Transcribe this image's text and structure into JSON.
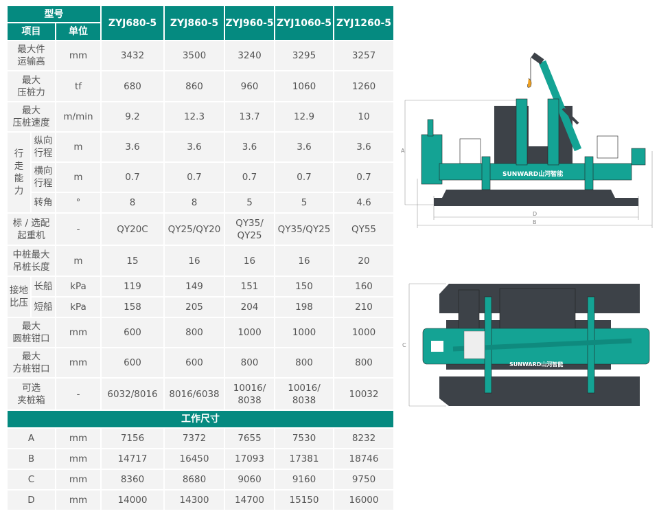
{
  "header": {
    "model_label": "型号",
    "item_label": "项目",
    "unit_label": "单位",
    "models": [
      "ZYJ680-5",
      "ZYJ860-5",
      "ZYJ960-5",
      "ZYJ1060-5",
      "ZYJ1260-5"
    ]
  },
  "spec_rows": [
    {
      "item": "最大件\n运输高",
      "unit": "mm",
      "values": [
        "3432",
        "3500",
        "3240",
        "3295",
        "3257"
      ]
    },
    {
      "item": "最大\n压桩力",
      "unit": "tf",
      "values": [
        "680",
        "860",
        "960",
        "1060",
        "1260"
      ]
    },
    {
      "item": "最大\n压桩速度",
      "unit": "m/min",
      "values": [
        "9.2",
        "12.3",
        "13.7",
        "12.9",
        "10"
      ]
    },
    {
      "group": "行\n走\n能\n力",
      "group_span": 3,
      "sub": "纵向\n行程",
      "unit": "m",
      "values": [
        "3.6",
        "3.6",
        "3.6",
        "3.6",
        "3.6"
      ]
    },
    {
      "sub": "横向\n行程",
      "unit": "m",
      "values": [
        "0.7",
        "0.7",
        "0.7",
        "0.7",
        "0.7"
      ]
    },
    {
      "sub": "转角",
      "unit": "°",
      "values": [
        "8",
        "8",
        "5",
        "5",
        "4.6"
      ]
    },
    {
      "item": "标 / 选配\n起重机",
      "unit": "-",
      "values": [
        "QY20C",
        "QY25/QY20",
        "QY35/\nQY25",
        "QY35/QY25",
        "QY55"
      ]
    },
    {
      "item": "中桩最大\n吊桩长度",
      "unit": "m",
      "values": [
        "15",
        "16",
        "16",
        "16",
        "20"
      ]
    },
    {
      "group": "接地\n比压",
      "group_span": 2,
      "sub": "长船",
      "unit": "kPa",
      "values": [
        "119",
        "149",
        "151",
        "150",
        "160"
      ]
    },
    {
      "sub": "短船",
      "unit": "kPa",
      "values": [
        "158",
        "205",
        "204",
        "198",
        "210"
      ]
    },
    {
      "item": "最大\n圆桩钳口",
      "unit": "mm",
      "values": [
        "600",
        "800",
        "1000",
        "1000",
        "1000"
      ]
    },
    {
      "item": "最大\n方桩钳口",
      "unit": "mm",
      "values": [
        "600",
        "600",
        "800",
        "800",
        "800"
      ]
    },
    {
      "item": "可选\n夹桩箱",
      "unit": "-",
      "values": [
        "6032/8016",
        "8016/6038",
        "10016/\n8038",
        "10016/\n8038",
        "10032"
      ]
    }
  ],
  "dimensions_section": {
    "title": "工作尺寸",
    "rows": [
      {
        "item": "A",
        "unit": "mm",
        "values": [
          "7156",
          "7372",
          "7655",
          "7530",
          "8232"
        ]
      },
      {
        "item": "B",
        "unit": "mm",
        "values": [
          "14717",
          "16450",
          "17093",
          "17381",
          "18746"
        ]
      },
      {
        "item": "C",
        "unit": "mm",
        "values": [
          "8360",
          "8680",
          "9060",
          "9160",
          "9750"
        ]
      },
      {
        "item": "D",
        "unit": "mm",
        "values": [
          "14000",
          "14300",
          "14700",
          "15150",
          "16000"
        ]
      }
    ]
  },
  "drawings": {
    "brand_logo": "SUNWARD山河智能",
    "side_labels": {
      "a": "A",
      "b": "B",
      "d": "D"
    },
    "top_labels": {
      "c": "C"
    }
  },
  "colors": {
    "teal": "#058a80",
    "machine_teal": "#14a394",
    "dark_gray": "#3d4248",
    "cell_bg": "#f3f3f3"
  }
}
